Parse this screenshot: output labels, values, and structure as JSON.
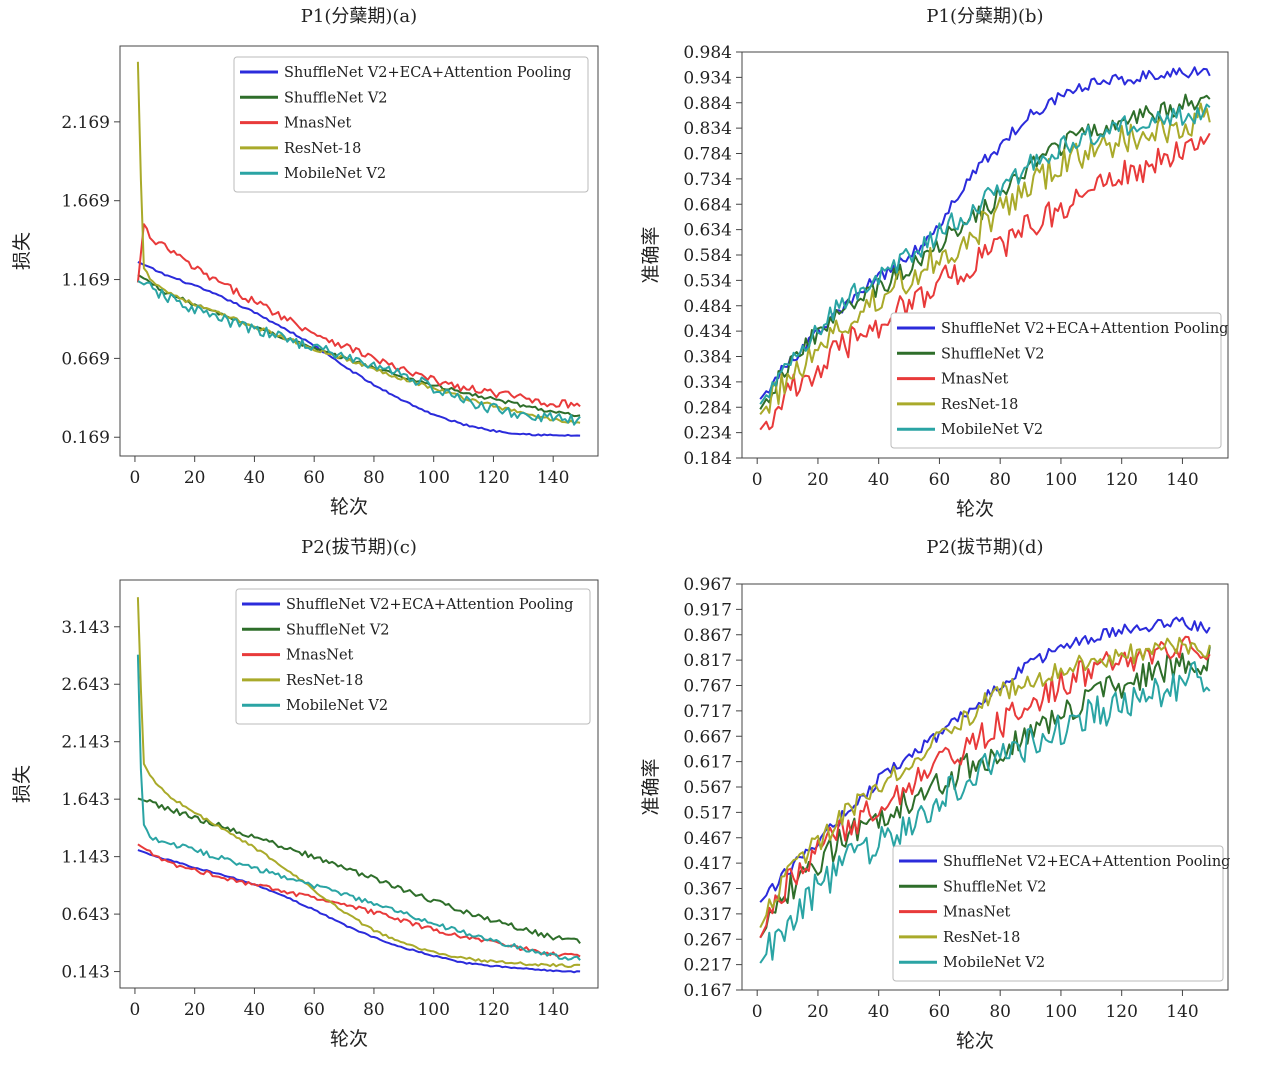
{
  "figure": {
    "series_names": [
      "ShuffleNet V2+ECA+Attention Pooling",
      "ShuffleNet V2",
      "MnasNet",
      "ResNet-18",
      "MobileNet V2"
    ],
    "series_colors": [
      "#2b2bdb",
      "#2e6e2a",
      "#e83a3a",
      "#a9aa2a",
      "#2aa4a4"
    ]
  },
  "chart_data": [
    {
      "id": "a",
      "type": "line",
      "title": "P1(分蘖期)(a)",
      "xlabel": "轮次",
      "ylabel": "损失",
      "xlim": [
        -5,
        155
      ],
      "ylim": [
        0.05,
        2.65
      ],
      "xticks": [
        0,
        20,
        40,
        60,
        80,
        100,
        120,
        140
      ],
      "xtick_labels": [
        "0",
        "20",
        "40",
        "60",
        "80",
        "100",
        "120",
        "140"
      ],
      "yticks": [
        0.169,
        0.669,
        1.169,
        1.669,
        2.169
      ],
      "ytick_labels": [
        "0.169",
        "0.669",
        "1.169",
        "1.669",
        "2.169"
      ],
      "legend": "top-right",
      "grid": false,
      "series": [
        {
          "name": "ShuffleNet V2+ECA+Attention Pooling",
          "x": [
            1,
            10,
            20,
            30,
            40,
            50,
            60,
            70,
            80,
            90,
            100,
            110,
            120,
            130,
            140,
            149
          ],
          "values": [
            1.28,
            1.2,
            1.13,
            1.05,
            0.96,
            0.86,
            0.75,
            0.62,
            0.5,
            0.4,
            0.31,
            0.25,
            0.21,
            0.19,
            0.18,
            0.18
          ],
          "noise": 0.006
        },
        {
          "name": "ShuffleNet V2",
          "x": [
            1,
            10,
            20,
            30,
            40,
            50,
            60,
            70,
            80,
            90,
            100,
            110,
            120,
            130,
            140,
            149
          ],
          "values": [
            1.2,
            1.09,
            1.01,
            0.94,
            0.87,
            0.8,
            0.73,
            0.67,
            0.61,
            0.55,
            0.5,
            0.45,
            0.41,
            0.37,
            0.33,
            0.3
          ],
          "noise": 0.012
        },
        {
          "name": "MnasNet",
          "x": [
            1,
            3,
            6,
            10,
            20,
            30,
            40,
            50,
            60,
            70,
            80,
            90,
            100,
            110,
            120,
            130,
            140,
            149
          ],
          "values": [
            1.15,
            1.52,
            1.4,
            1.38,
            1.24,
            1.13,
            1.03,
            0.93,
            0.83,
            0.75,
            0.67,
            0.59,
            0.53,
            0.48,
            0.45,
            0.42,
            0.38,
            0.38
          ],
          "noise": 0.025
        },
        {
          "name": "ResNet-18",
          "x": [
            1,
            2,
            3,
            5,
            10,
            20,
            30,
            40,
            50,
            60,
            70,
            80,
            90,
            100,
            110,
            120,
            130,
            140,
            149
          ],
          "values": [
            2.55,
            1.8,
            1.24,
            1.18,
            1.1,
            1.01,
            0.94,
            0.87,
            0.8,
            0.73,
            0.67,
            0.6,
            0.54,
            0.48,
            0.42,
            0.37,
            0.32,
            0.28,
            0.26
          ],
          "noise": 0.012
        },
        {
          "name": "MobileNet V2",
          "x": [
            1,
            10,
            20,
            30,
            40,
            50,
            60,
            70,
            80,
            90,
            100,
            110,
            120,
            130,
            140,
            149
          ],
          "values": [
            1.16,
            1.06,
            0.98,
            0.91,
            0.85,
            0.8,
            0.74,
            0.68,
            0.62,
            0.57,
            0.48,
            0.4,
            0.35,
            0.31,
            0.29,
            0.27
          ],
          "noise": 0.035
        }
      ]
    },
    {
      "id": "b",
      "type": "line",
      "title": "P1(分蘖期)(b)",
      "xlabel": "轮次",
      "ylabel": "准确率",
      "xlim": [
        -5,
        155
      ],
      "ylim": [
        0.184,
        0.984
      ],
      "xticks": [
        0,
        20,
        40,
        60,
        80,
        100,
        120,
        140
      ],
      "xtick_labels": [
        "0",
        "20",
        "40",
        "60",
        "80",
        "100",
        "120",
        "140"
      ],
      "yticks": [
        0.184,
        0.234,
        0.284,
        0.334,
        0.384,
        0.434,
        0.484,
        0.534,
        0.584,
        0.634,
        0.684,
        0.734,
        0.784,
        0.834,
        0.884,
        0.934,
        0.984
      ],
      "ytick_labels": [
        "0.184",
        "0.234",
        "0.284",
        "0.334",
        "0.384",
        "0.434",
        "0.484",
        "0.534",
        "0.584",
        "0.634",
        "0.684",
        "0.734",
        "0.784",
        "0.834",
        "0.884",
        "0.934",
        "0.984"
      ],
      "legend": "lower-right",
      "grid": false,
      "series": [
        {
          "name": "ShuffleNet V2+ECA+Attention Pooling",
          "x": [
            1,
            10,
            20,
            30,
            40,
            50,
            60,
            70,
            80,
            90,
            100,
            110,
            120,
            130,
            140,
            149
          ],
          "values": [
            0.3,
            0.37,
            0.43,
            0.49,
            0.54,
            0.58,
            0.64,
            0.74,
            0.8,
            0.86,
            0.9,
            0.92,
            0.93,
            0.94,
            0.945,
            0.945
          ],
          "noise": 0.012
        },
        {
          "name": "ShuffleNet V2",
          "x": [
            1,
            10,
            20,
            30,
            40,
            50,
            60,
            70,
            80,
            90,
            100,
            110,
            120,
            130,
            140,
            149
          ],
          "values": [
            0.28,
            0.37,
            0.43,
            0.48,
            0.52,
            0.56,
            0.61,
            0.65,
            0.7,
            0.76,
            0.8,
            0.83,
            0.85,
            0.86,
            0.88,
            0.89
          ],
          "noise": 0.02
        },
        {
          "name": "MnasNet",
          "x": [
            1,
            10,
            20,
            30,
            40,
            50,
            60,
            70,
            80,
            90,
            100,
            110,
            120,
            130,
            140,
            149
          ],
          "values": [
            0.24,
            0.31,
            0.36,
            0.41,
            0.45,
            0.49,
            0.53,
            0.56,
            0.6,
            0.64,
            0.68,
            0.71,
            0.74,
            0.76,
            0.79,
            0.8
          ],
          "noise": 0.03
        },
        {
          "name": "ResNet-18",
          "x": [
            1,
            10,
            20,
            30,
            40,
            50,
            60,
            70,
            80,
            90,
            100,
            110,
            120,
            130,
            140,
            149
          ],
          "values": [
            0.27,
            0.34,
            0.4,
            0.45,
            0.5,
            0.54,
            0.58,
            0.62,
            0.67,
            0.72,
            0.76,
            0.79,
            0.81,
            0.82,
            0.84,
            0.86
          ],
          "noise": 0.03
        },
        {
          "name": "MobileNet V2",
          "x": [
            1,
            10,
            20,
            30,
            40,
            50,
            60,
            70,
            80,
            90,
            100,
            110,
            120,
            130,
            140,
            149
          ],
          "values": [
            0.29,
            0.37,
            0.44,
            0.5,
            0.54,
            0.58,
            0.63,
            0.67,
            0.72,
            0.76,
            0.8,
            0.82,
            0.84,
            0.85,
            0.86,
            0.87
          ],
          "noise": 0.022
        }
      ]
    },
    {
      "id": "c",
      "type": "line",
      "title": "P2(拔节期)(c)",
      "xlabel": "轮次",
      "ylabel": "损失",
      "xlim": [
        -5,
        155
      ],
      "ylim": [
        0.0,
        3.55
      ],
      "xticks": [
        0,
        20,
        40,
        60,
        80,
        100,
        120,
        140
      ],
      "xtick_labels": [
        "0",
        "20",
        "40",
        "60",
        "80",
        "100",
        "120",
        "140"
      ],
      "yticks": [
        0.143,
        0.643,
        1.143,
        1.643,
        2.143,
        2.643,
        3.143
      ],
      "ytick_labels": [
        "0.143",
        "0.643",
        "1.143",
        "1.643",
        "2.143",
        "2.643",
        "3.143"
      ],
      "legend": "top-right",
      "grid": false,
      "series": [
        {
          "name": "ShuffleNet V2+ECA+Attention Pooling",
          "x": [
            1,
            10,
            20,
            30,
            40,
            50,
            60,
            70,
            80,
            90,
            100,
            110,
            120,
            130,
            140,
            149
          ],
          "values": [
            1.2,
            1.12,
            1.05,
            0.98,
            0.9,
            0.8,
            0.68,
            0.55,
            0.44,
            0.35,
            0.28,
            0.22,
            0.19,
            0.17,
            0.15,
            0.14
          ],
          "noise": 0.006
        },
        {
          "name": "ShuffleNet V2",
          "x": [
            1,
            10,
            20,
            30,
            40,
            50,
            60,
            70,
            80,
            90,
            100,
            110,
            120,
            130,
            140,
            149
          ],
          "values": [
            1.65,
            1.57,
            1.48,
            1.4,
            1.31,
            1.23,
            1.14,
            1.05,
            0.95,
            0.85,
            0.76,
            0.67,
            0.59,
            0.51,
            0.44,
            0.4
          ],
          "noise": 0.022
        },
        {
          "name": "MnasNet",
          "x": [
            1,
            10,
            20,
            30,
            40,
            50,
            60,
            70,
            80,
            90,
            100,
            110,
            120,
            130,
            140,
            149
          ],
          "values": [
            1.25,
            1.1,
            1.03,
            0.96,
            0.9,
            0.84,
            0.78,
            0.72,
            0.66,
            0.58,
            0.51,
            0.45,
            0.39,
            0.34,
            0.29,
            0.27
          ],
          "noise": 0.02
        },
        {
          "name": "ResNet-18",
          "x": [
            1,
            2,
            3,
            5,
            10,
            20,
            30,
            40,
            50,
            60,
            70,
            80,
            90,
            100,
            110,
            120,
            130,
            140,
            149
          ],
          "values": [
            3.4,
            2.6,
            1.95,
            1.85,
            1.7,
            1.52,
            1.38,
            1.22,
            1.05,
            0.85,
            0.66,
            0.5,
            0.39,
            0.31,
            0.26,
            0.23,
            0.21,
            0.2,
            0.19
          ],
          "noise": 0.012
        },
        {
          "name": "MobileNet V2",
          "x": [
            1,
            2,
            3,
            5,
            10,
            20,
            30,
            40,
            50,
            60,
            70,
            80,
            90,
            100,
            110,
            120,
            130,
            140,
            149
          ],
          "values": [
            2.9,
            1.9,
            1.42,
            1.32,
            1.27,
            1.2,
            1.12,
            1.04,
            0.97,
            0.89,
            0.81,
            0.73,
            0.65,
            0.56,
            0.48,
            0.41,
            0.34,
            0.28,
            0.25
          ],
          "noise": 0.022
        }
      ]
    },
    {
      "id": "d",
      "type": "line",
      "title": "P2(拔节期)(d)",
      "xlabel": "轮次",
      "ylabel": "准确率",
      "xlim": [
        -5,
        155
      ],
      "ylim": [
        0.167,
        0.967
      ],
      "xticks": [
        0,
        20,
        40,
        60,
        80,
        100,
        120,
        140
      ],
      "xtick_labels": [
        "0",
        "20",
        "40",
        "60",
        "80",
        "100",
        "120",
        "140"
      ],
      "yticks": [
        0.167,
        0.217,
        0.267,
        0.317,
        0.367,
        0.417,
        0.467,
        0.517,
        0.567,
        0.617,
        0.667,
        0.717,
        0.767,
        0.817,
        0.867,
        0.917,
        0.967
      ],
      "ytick_labels": [
        "0.167",
        "0.217",
        "0.267",
        "0.317",
        "0.367",
        "0.417",
        "0.467",
        "0.517",
        "0.567",
        "0.617",
        "0.667",
        "0.717",
        "0.767",
        "0.817",
        "0.867",
        "0.917",
        "0.967"
      ],
      "legend": "lower-right",
      "grid": false,
      "series": [
        {
          "name": "ShuffleNet V2+ECA+Attention Pooling",
          "x": [
            1,
            10,
            20,
            30,
            40,
            50,
            60,
            70,
            80,
            90,
            100,
            110,
            120,
            130,
            140,
            149
          ],
          "values": [
            0.34,
            0.4,
            0.46,
            0.52,
            0.58,
            0.63,
            0.67,
            0.72,
            0.77,
            0.81,
            0.84,
            0.86,
            0.875,
            0.885,
            0.89,
            0.88
          ],
          "noise": 0.012
        },
        {
          "name": "ShuffleNet V2",
          "x": [
            1,
            10,
            20,
            30,
            40,
            50,
            60,
            70,
            80,
            90,
            100,
            110,
            120,
            130,
            140,
            149
          ],
          "values": [
            0.27,
            0.36,
            0.42,
            0.47,
            0.51,
            0.54,
            0.57,
            0.61,
            0.64,
            0.68,
            0.71,
            0.74,
            0.77,
            0.79,
            0.81,
            0.82
          ],
          "noise": 0.028
        },
        {
          "name": "MnasNet",
          "x": [
            1,
            10,
            20,
            30,
            40,
            50,
            60,
            70,
            80,
            90,
            100,
            110,
            120,
            130,
            140,
            149
          ],
          "values": [
            0.27,
            0.38,
            0.44,
            0.49,
            0.53,
            0.57,
            0.61,
            0.65,
            0.69,
            0.73,
            0.77,
            0.8,
            0.81,
            0.82,
            0.84,
            0.84
          ],
          "noise": 0.028
        },
        {
          "name": "ResNet-18",
          "x": [
            1,
            10,
            20,
            30,
            40,
            50,
            60,
            70,
            80,
            90,
            100,
            110,
            120,
            130,
            140,
            149
          ],
          "values": [
            0.29,
            0.4,
            0.46,
            0.52,
            0.57,
            0.62,
            0.67,
            0.71,
            0.75,
            0.78,
            0.8,
            0.82,
            0.83,
            0.835,
            0.84,
            0.84
          ],
          "noise": 0.022
        },
        {
          "name": "MobileNet V2",
          "x": [
            1,
            10,
            20,
            30,
            40,
            50,
            60,
            70,
            80,
            90,
            100,
            110,
            120,
            130,
            140,
            149
          ],
          "values": [
            0.22,
            0.3,
            0.37,
            0.42,
            0.46,
            0.5,
            0.54,
            0.58,
            0.62,
            0.65,
            0.68,
            0.71,
            0.73,
            0.75,
            0.77,
            0.79
          ],
          "noise": 0.035
        }
      ]
    }
  ]
}
